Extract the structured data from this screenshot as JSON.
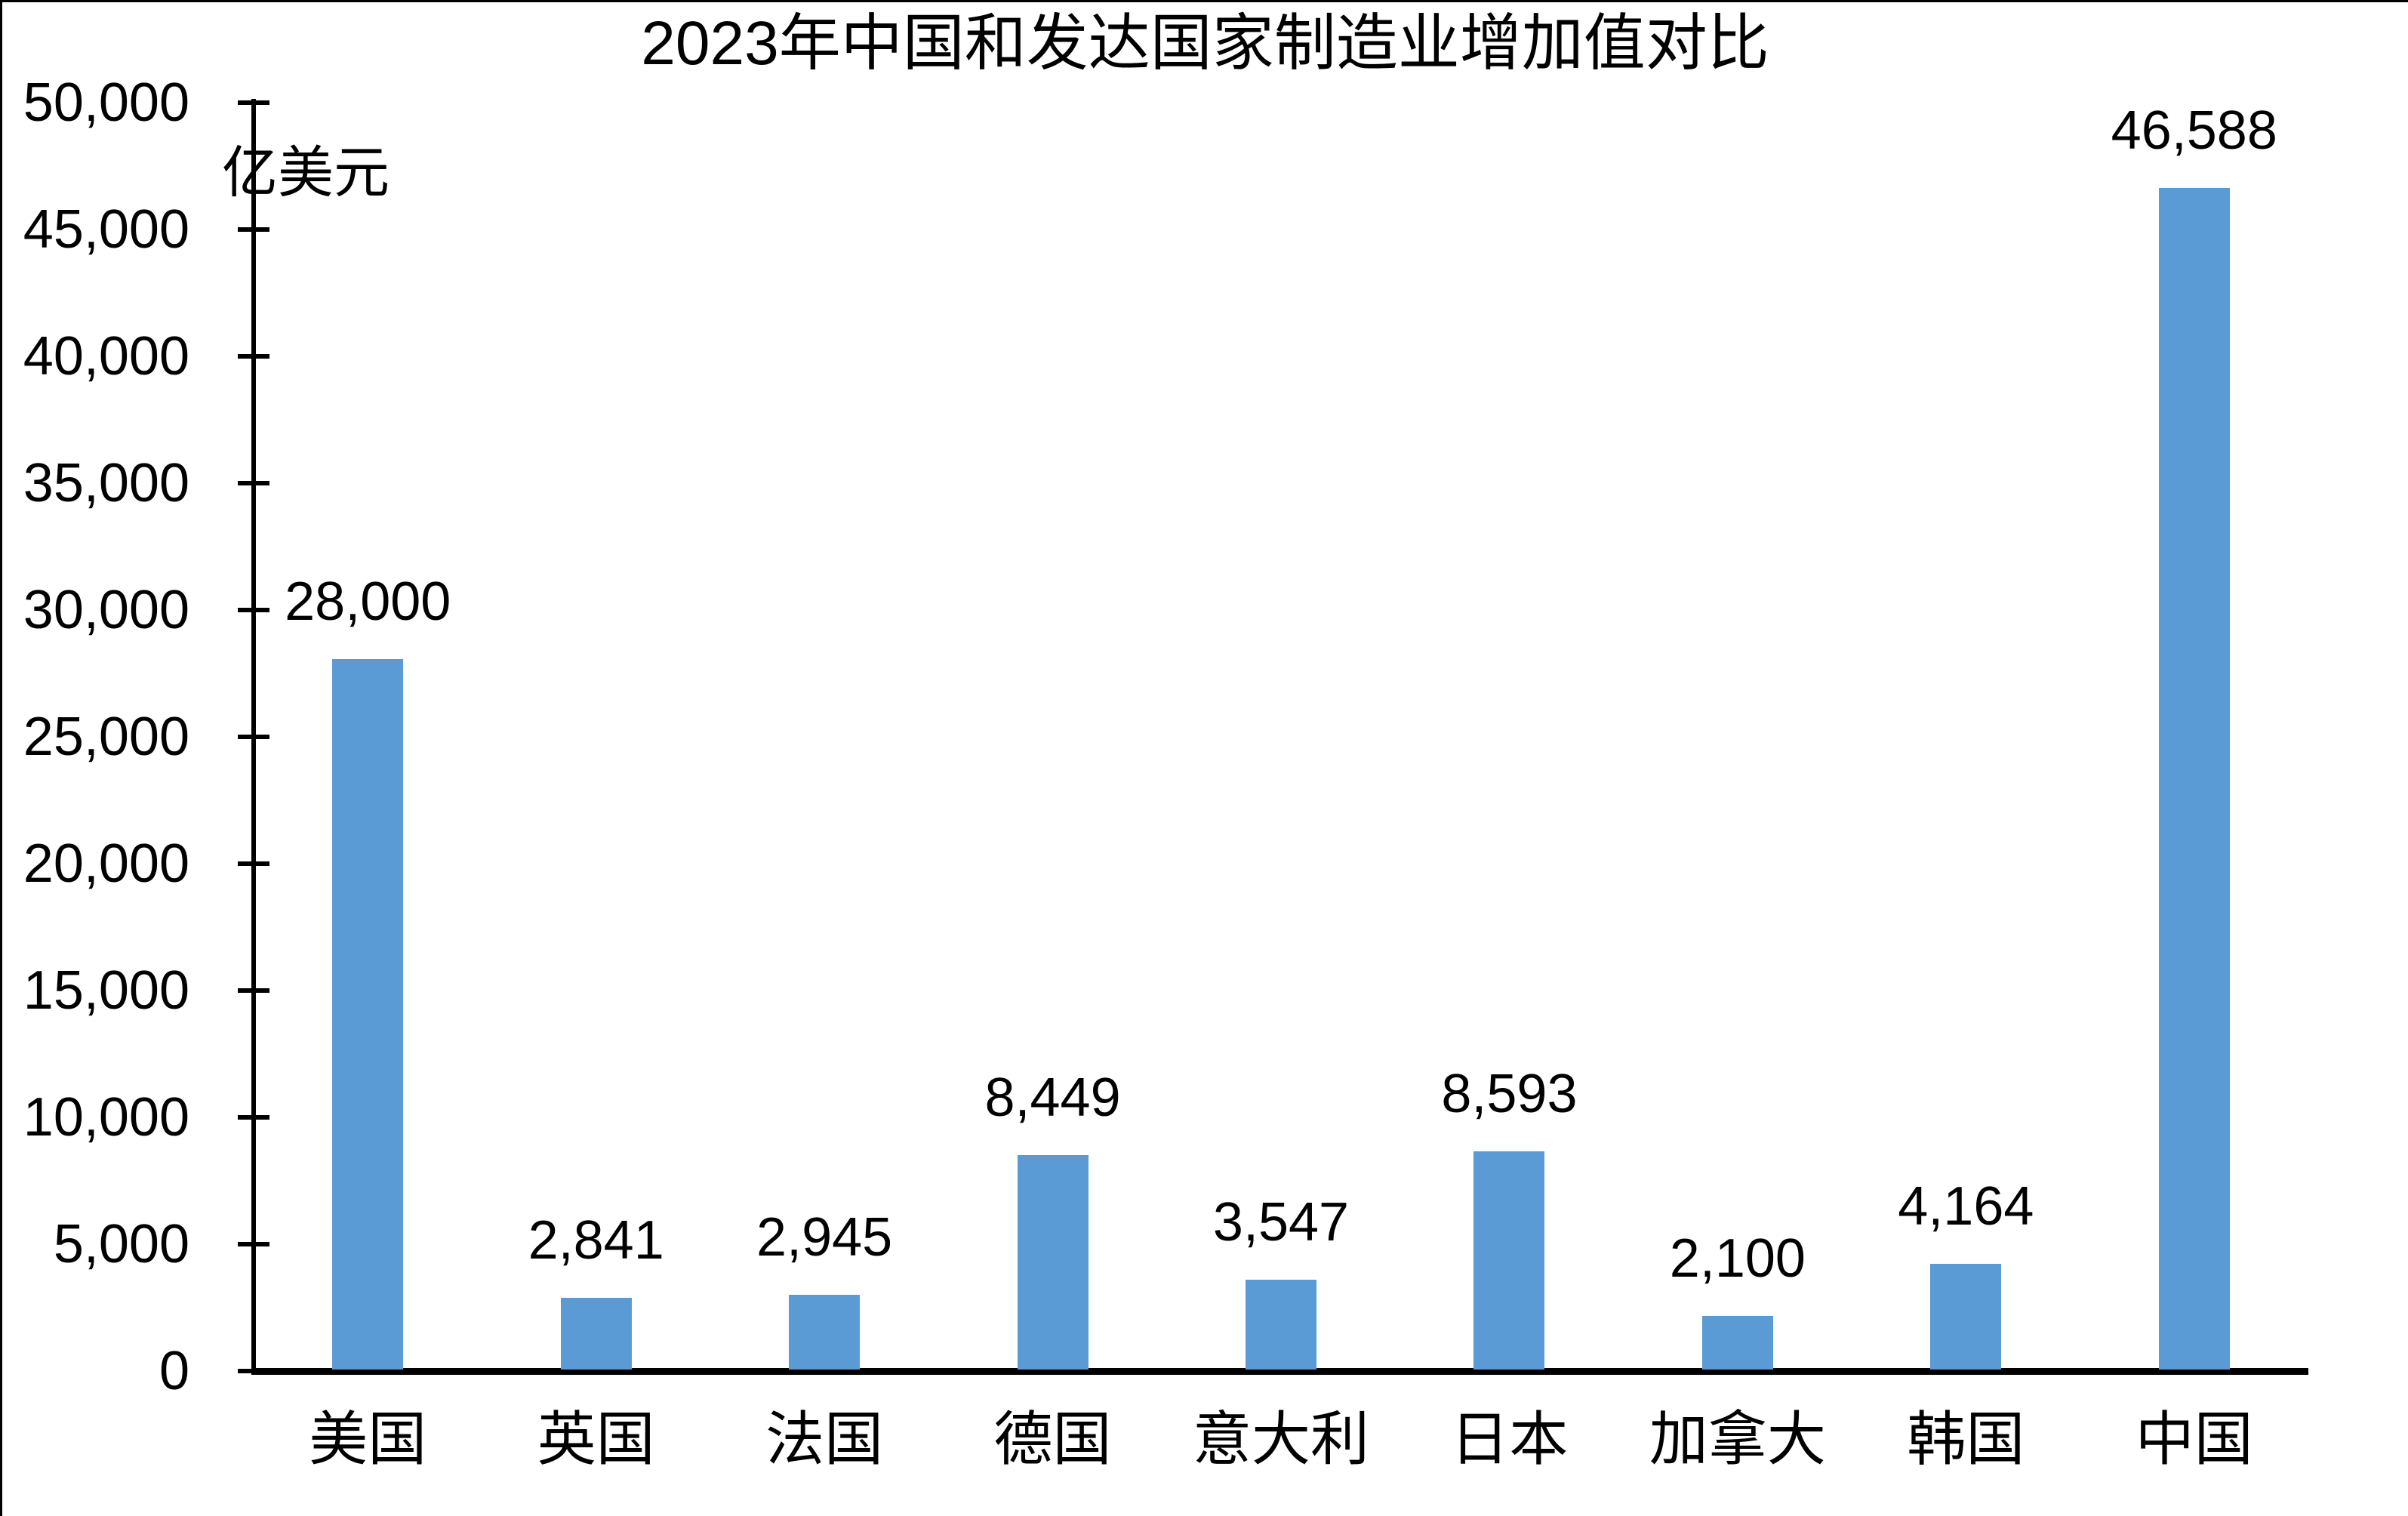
{
  "chart_data": {
    "type": "bar",
    "title": "2023年中国和发达国家制造业增加值对比",
    "unit_label": "亿美元",
    "categories": [
      "美国",
      "英国",
      "法国",
      "德国",
      "意大利",
      "日本",
      "加拿大",
      "韩国",
      "中国"
    ],
    "values": [
      28000,
      2841,
      2945,
      8449,
      3547,
      8593,
      2100,
      4164,
      46588
    ],
    "data_labels": [
      "28,000",
      "2,841",
      "2,945",
      "8,449",
      "3,547",
      "8,593",
      "2,100",
      "4,164",
      "46,588"
    ],
    "y_axis": {
      "min": 0,
      "max": 50000,
      "step": 5000,
      "tick_labels": [
        "0",
        "5,000",
        "10,000",
        "15,000",
        "20,000",
        "25,000",
        "30,000",
        "35,000",
        "40,000",
        "45,000",
        "50,000"
      ]
    },
    "bar_color": "#5b9bd5",
    "axis_color": "#000000",
    "grid": false,
    "legend": "none"
  }
}
